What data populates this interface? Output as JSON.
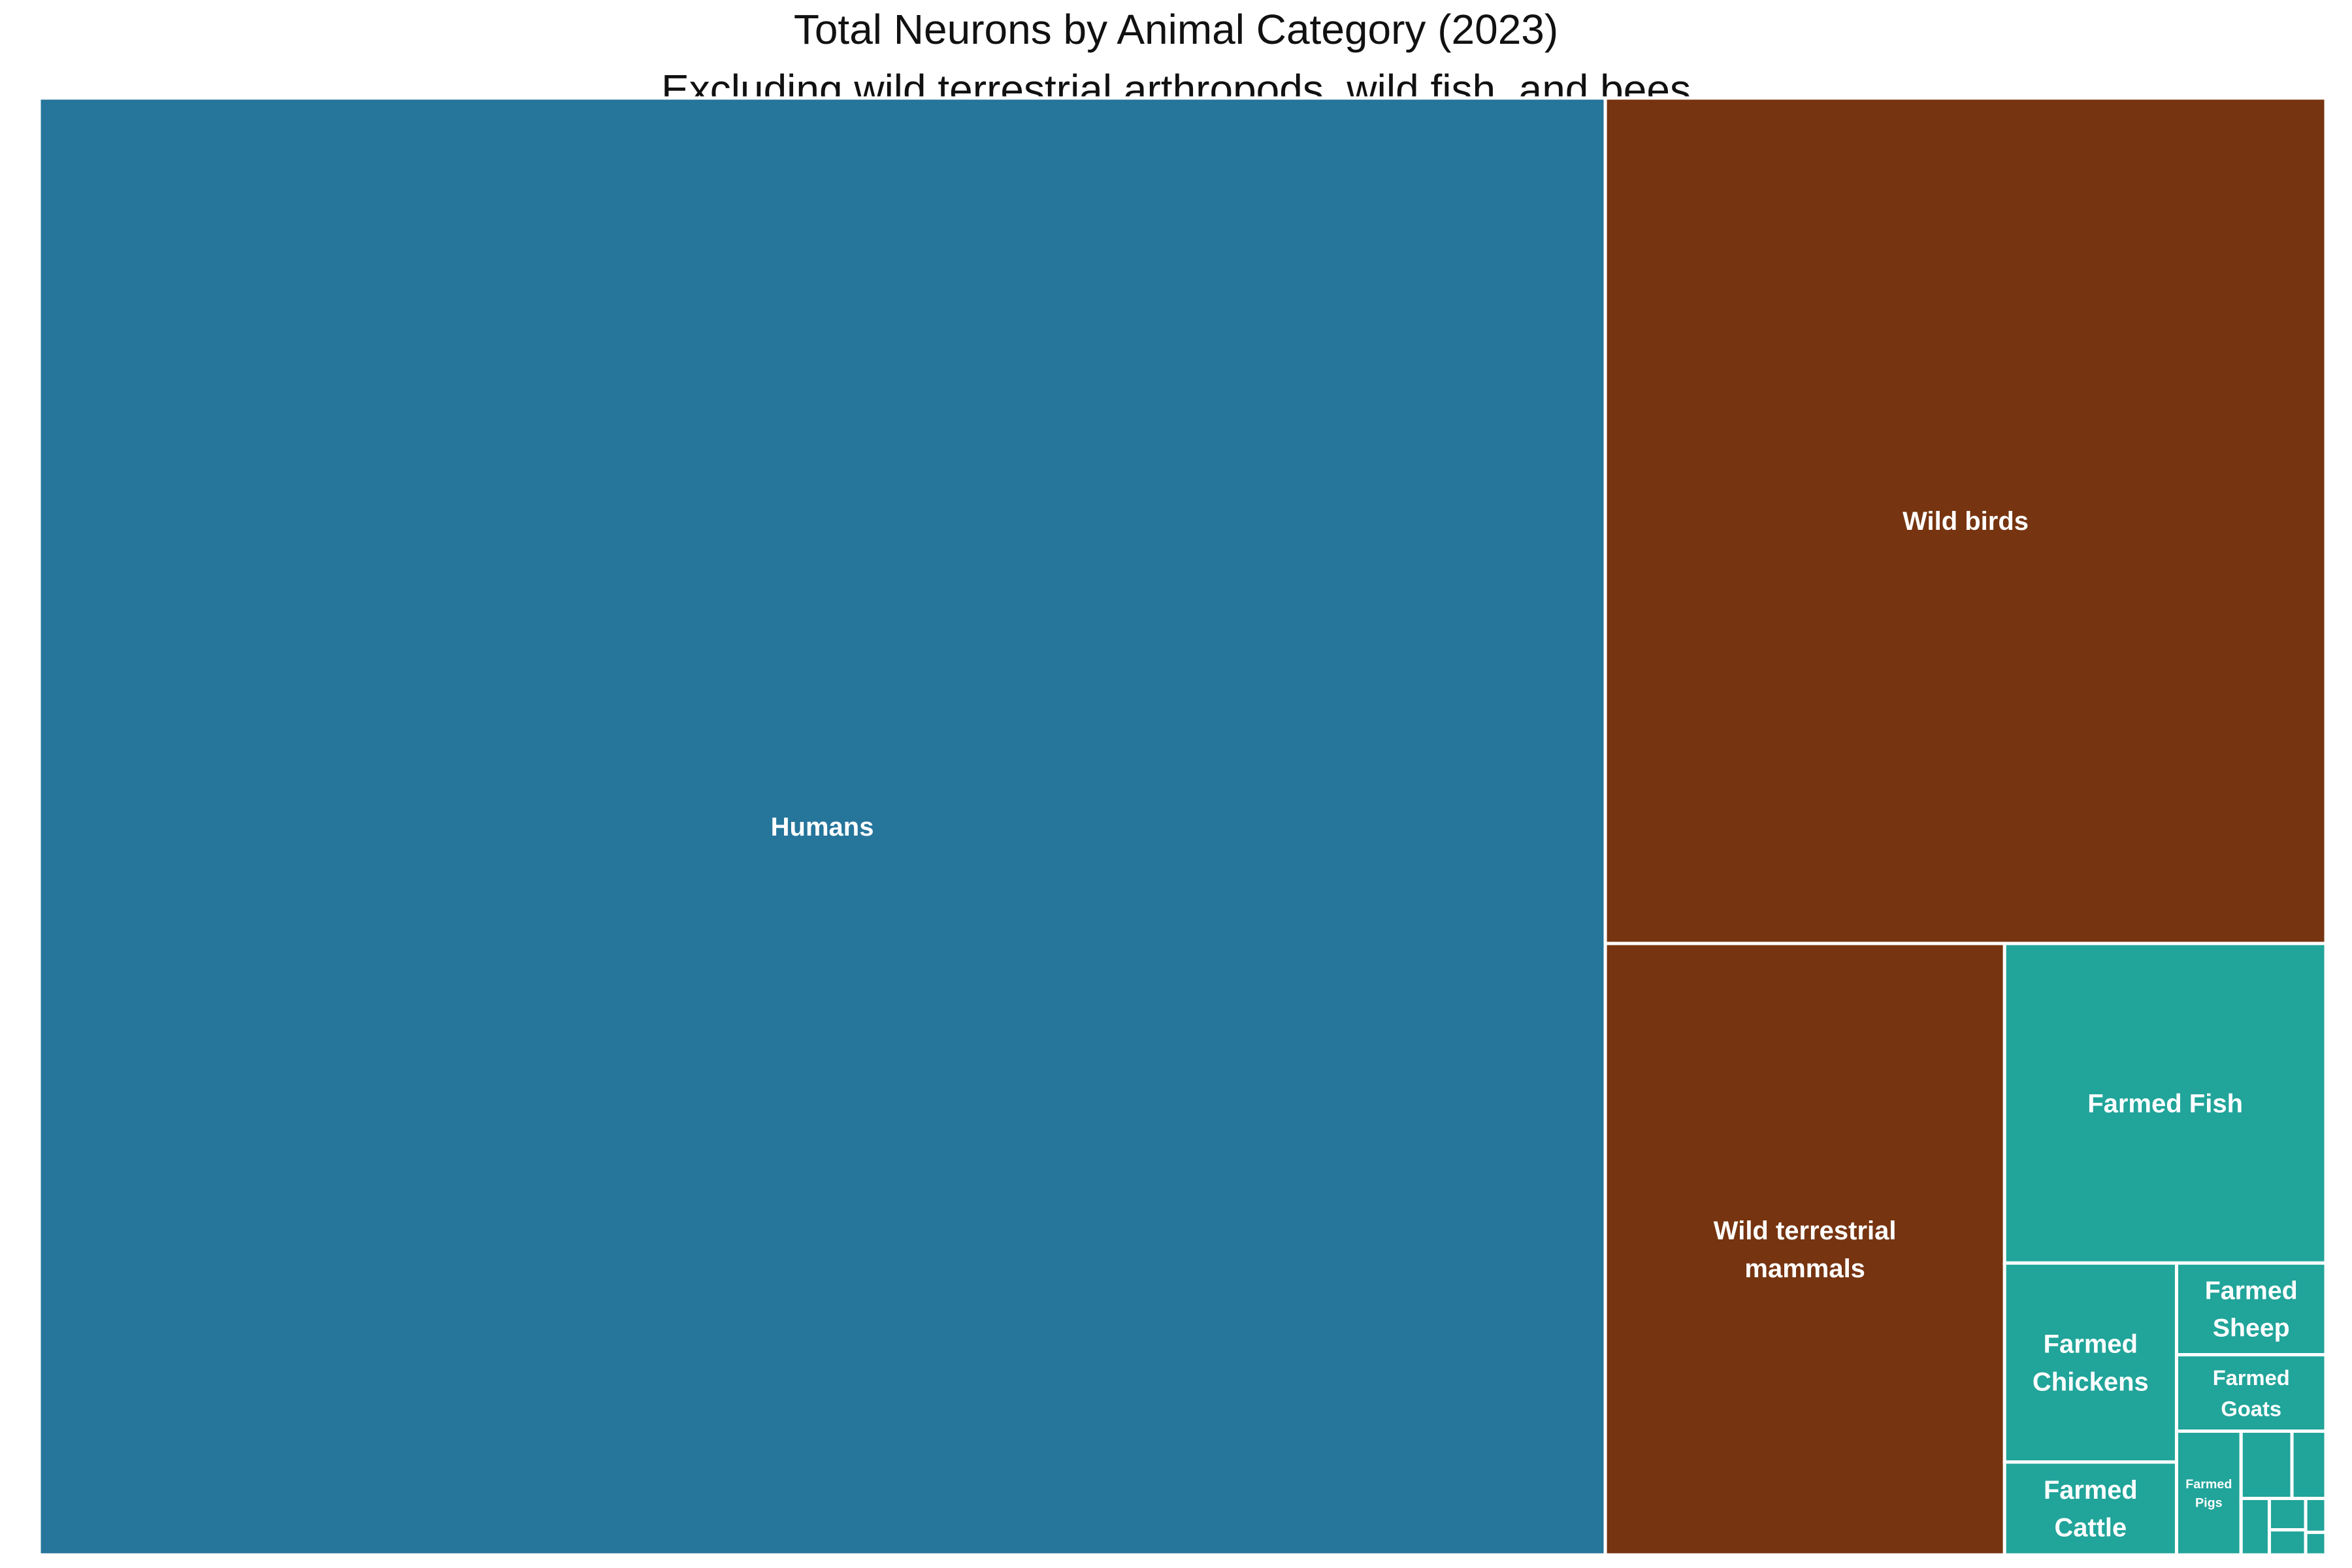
{
  "chart_data": {
    "type": "treemap",
    "title": "Total Neurons by Animal Category (2023)",
    "subtitle": "Excluding wild terrestrial arthropods, wild fish, and bees",
    "colors": {
      "human": "#26759b",
      "wild": "#763410",
      "farmed": "#21a49a",
      "border": "#ffffff"
    },
    "items": [
      {
        "label": "Humans",
        "group": "human",
        "value": 100
      },
      {
        "label": "Wild birds",
        "group": "wild",
        "value": 26.7
      },
      {
        "label": "Wild terrestrial mammals",
        "group": "wild",
        "value": 10.7
      },
      {
        "label": "Farmed Fish",
        "group": "farmed",
        "value": 4.5
      },
      {
        "label": "Farmed Chickens",
        "group": "farmed",
        "value": 1.5
      },
      {
        "label": "Farmed Cattle",
        "group": "farmed",
        "value": 0.7
      },
      {
        "label": "Farmed Sheep",
        "group": "farmed",
        "value": 0.6
      },
      {
        "label": "Farmed Goats",
        "group": "farmed",
        "value": 0.5
      },
      {
        "label": "Farmed Pigs",
        "group": "farmed",
        "value": 0.35
      },
      {
        "label": "",
        "group": "farmed",
        "value": 0.15
      },
      {
        "label": "",
        "group": "farmed",
        "value": 0.1
      },
      {
        "label": "",
        "group": "farmed",
        "value": 0.07
      },
      {
        "label": "",
        "group": "farmed",
        "value": 0.05
      },
      {
        "label": "",
        "group": "farmed",
        "value": 0.04
      },
      {
        "label": "",
        "group": "farmed",
        "value": 0.03
      },
      {
        "label": "",
        "group": "farmed",
        "value": 0.02
      }
    ]
  }
}
